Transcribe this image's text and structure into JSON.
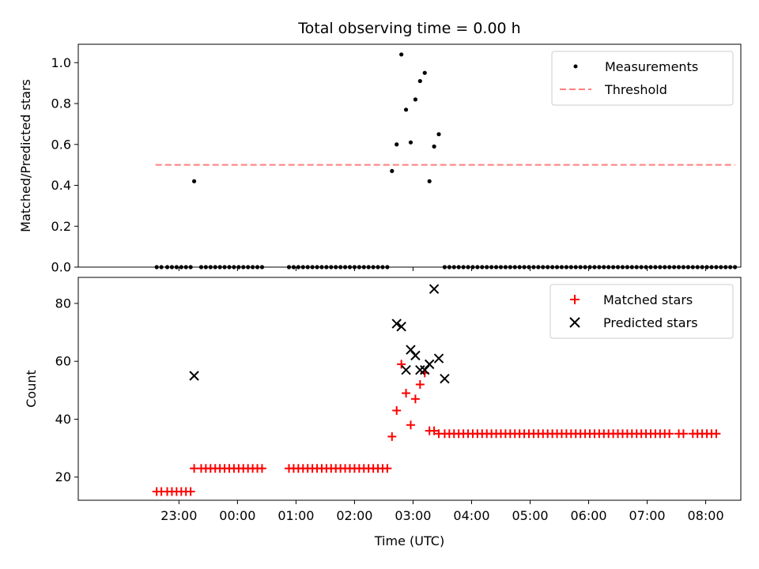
{
  "chart_data": {
    "title": "Total observing time = 0.00 h",
    "xlabel": "Time (UTC)",
    "x_ticks": [
      "23:00",
      "00:00",
      "01:00",
      "02:00",
      "03:00",
      "04:00",
      "05:00",
      "06:00",
      "07:00",
      "08:00"
    ],
    "x_unit": "hours after 22:00 UTC",
    "xlim": [
      -0.72,
      10.6
    ],
    "panels": [
      {
        "type": "scatter",
        "ylabel": "Matched/Predicted stars",
        "ylim": [
          0,
          1.09
        ],
        "yticks": [
          0.0,
          0.2,
          0.4,
          0.6,
          0.8,
          1.0
        ],
        "ytick_labels": [
          "0.0",
          "0.2",
          "0.4",
          "0.6",
          "0.8",
          "1.0"
        ],
        "legend": "top-right",
        "series": [
          {
            "name": "Measurements",
            "marker": "dot",
            "color": "#000000",
            "x": [
              0.62,
              0.7,
              0.8,
              0.88,
              0.96,
              1.04,
              1.12,
              1.2,
              1.26,
              1.38,
              1.46,
              1.54,
              1.62,
              1.7,
              1.78,
              1.86,
              1.94,
              2.02,
              2.1,
              2.18,
              2.26,
              2.34,
              2.42,
              2.88,
              2.96,
              3.04,
              3.12,
              3.2,
              3.28,
              3.36,
              3.44,
              3.52,
              3.6,
              3.68,
              3.76,
              3.84,
              3.92,
              4.0,
              4.08,
              4.16,
              4.24,
              4.32,
              4.4,
              4.48,
              4.56,
              4.64,
              4.72,
              4.8,
              4.88,
              4.96,
              5.04,
              5.12,
              5.2,
              5.28,
              5.36,
              5.44,
              5.54,
              5.62,
              5.7,
              5.78,
              5.86,
              5.94,
              6.02,
              6.1,
              6.18,
              6.26,
              6.34,
              6.42,
              6.5,
              6.58,
              6.66,
              6.74,
              6.82,
              6.9,
              6.98,
              7.06,
              7.14,
              7.22,
              7.3,
              7.38,
              7.46,
              7.54,
              7.62,
              7.7,
              7.78,
              7.86,
              7.94,
              8.02,
              8.1,
              8.18,
              8.26,
              8.34,
              8.42,
              8.5,
              8.58,
              8.66,
              8.74,
              8.82,
              8.9,
              8.98,
              9.06,
              9.14,
              9.22,
              9.3,
              9.38,
              9.46,
              9.54,
              9.62,
              9.7,
              9.78,
              9.86,
              9.94,
              10.02,
              10.1,
              10.18,
              10.26,
              10.34,
              10.42,
              10.5
            ],
            "y": [
              0,
              0,
              0,
              0,
              0,
              0,
              0,
              0,
              0.42,
              0,
              0,
              0,
              0,
              0,
              0,
              0,
              0,
              0,
              0,
              0,
              0,
              0,
              0,
              0,
              0,
              0,
              0,
              0,
              0,
              0,
              0,
              0,
              0,
              0,
              0,
              0,
              0,
              0,
              0,
              0,
              0,
              0,
              0,
              0,
              0,
              0.47,
              0.6,
              1.04,
              0.77,
              0.61,
              0.82,
              0.91,
              0.95,
              0.42,
              0.59,
              0.65,
              0,
              0,
              0,
              0,
              0,
              0,
              0,
              0,
              0,
              0,
              0,
              0,
              0,
              0,
              0,
              0,
              0,
              0,
              0,
              0,
              0,
              0,
              0,
              0,
              0,
              0,
              0,
              0,
              0,
              0,
              0,
              0,
              0,
              0,
              0,
              0,
              0,
              0,
              0,
              0,
              0,
              0,
              0,
              0,
              0,
              0,
              0,
              0,
              0,
              0,
              0,
              0,
              0,
              0,
              0,
              0,
              0,
              0,
              0,
              0,
              0,
              0,
              0
            ],
            "omit_x": [
              5.0,
              6.2,
              6.3,
              6.6,
              7.2,
              7.4,
              7.6,
              7.9,
              8.1,
              8.4,
              9.0,
              9.2,
              9.5,
              9.8,
              9.9,
              10.0,
              10.1,
              10.3,
              10.4,
              10.5,
              10.6,
              9.64,
              9.72,
              9.8,
              9.88,
              9.96,
              10.04,
              10.12,
              10.2,
              10.28,
              10.36,
              10.44
            ]
          },
          {
            "name": "Threshold",
            "marker": "dashed-line",
            "color": "#ff7f7f",
            "x": [
              0.6,
              10.5
            ],
            "y": [
              0.5,
              0.5
            ]
          }
        ]
      },
      {
        "type": "scatter",
        "ylabel": "Count",
        "ylim": [
          12,
          89
        ],
        "yticks": [
          20,
          40,
          60,
          80
        ],
        "ytick_labels": [
          "20",
          "40",
          "60",
          "80"
        ],
        "legend": "top-right",
        "series": [
          {
            "name": "Matched stars",
            "marker": "plus",
            "color": "#ff0000",
            "x": [
              0.62,
              0.7,
              0.8,
              0.88,
              0.96,
              1.04,
              1.12,
              1.2,
              1.26,
              1.38,
              1.46,
              1.54,
              1.62,
              1.7,
              1.78,
              1.86,
              1.94,
              2.02,
              2.1,
              2.18,
              2.26,
              2.34,
              2.42,
              2.88,
              2.96,
              3.04,
              3.12,
              3.2,
              3.28,
              3.36,
              3.44,
              3.52,
              3.6,
              3.68,
              3.76,
              3.84,
              3.92,
              4.0,
              4.08,
              4.16,
              4.24,
              4.32,
              4.4,
              4.48,
              4.56,
              4.64,
              4.72,
              4.8,
              4.88,
              4.96,
              5.04,
              5.12,
              5.2,
              5.28,
              5.36,
              5.44,
              5.54,
              5.62,
              5.7,
              5.78,
              5.86,
              5.94,
              6.02,
              6.1,
              6.18,
              6.26,
              6.34,
              6.42,
              6.5,
              6.58,
              6.66,
              6.74,
              6.82,
              6.9,
              6.98,
              7.06,
              7.14,
              7.22,
              7.3,
              7.38,
              7.46,
              7.54,
              7.62,
              7.7,
              7.78,
              7.86,
              7.94,
              8.02,
              8.1,
              8.18,
              8.26,
              8.34,
              8.42,
              8.5,
              8.58,
              8.66,
              8.74,
              8.82,
              8.9,
              8.98,
              9.06,
              9.14,
              9.22,
              9.3,
              9.38,
              9.54,
              9.62,
              9.78,
              9.86,
              9.94,
              10.02,
              10.1,
              10.18
            ],
            "y": [
              15,
              15,
              15,
              15,
              15,
              15,
              15,
              15,
              23,
              23,
              23,
              23,
              23,
              23,
              23,
              23,
              23,
              23,
              23,
              23,
              23,
              23,
              23,
              23,
              23,
              23,
              23,
              23,
              23,
              23,
              23,
              23,
              23,
              23,
              23,
              23,
              23,
              23,
              23,
              23,
              23,
              23,
              23,
              23,
              23,
              34,
              43,
              59,
              49,
              38,
              47,
              52,
              56,
              36,
              36,
              35,
              35,
              35,
              35,
              35,
              35,
              35,
              35,
              35,
              35,
              35,
              35,
              35,
              35,
              35,
              35,
              35,
              35,
              35,
              35,
              35,
              35,
              35,
              35,
              35,
              35,
              35,
              35,
              35,
              35,
              35,
              35,
              35,
              35,
              35,
              35,
              35,
              35,
              35,
              35,
              35,
              35,
              35,
              35,
              35,
              35,
              35,
              35,
              35,
              35,
              35,
              35,
              35,
              35,
              35,
              35,
              35,
              35
            ]
          },
          {
            "name": "Predicted stars",
            "marker": "x",
            "color": "#000000",
            "x": [
              1.26,
              4.72,
              4.8,
              4.88,
              4.96,
              5.04,
              5.12,
              5.2,
              5.28,
              5.36,
              5.44,
              5.54
            ],
            "y": [
              55,
              73,
              72,
              57,
              64,
              62,
              57,
              57,
              59,
              85,
              61,
              54
            ]
          }
        ]
      }
    ]
  }
}
